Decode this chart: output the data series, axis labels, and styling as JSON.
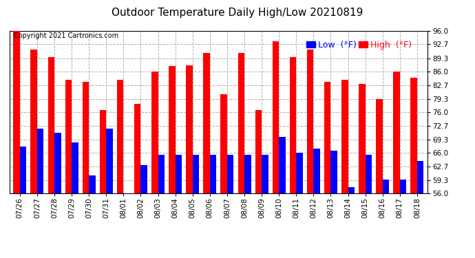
{
  "title": "Outdoor Temperature Daily High/Low 20210819",
  "copyright": "Copyright 2021 Cartronics.com",
  "dates": [
    "07/26",
    "07/27",
    "07/28",
    "07/29",
    "07/30",
    "07/31",
    "08/01",
    "08/02",
    "08/03",
    "08/04",
    "08/05",
    "08/06",
    "08/07",
    "08/08",
    "08/09",
    "08/10",
    "08/11",
    "08/12",
    "08/13",
    "08/14",
    "08/15",
    "08/16",
    "08/17",
    "08/18"
  ],
  "highs": [
    96.0,
    91.5,
    89.5,
    84.0,
    83.5,
    76.5,
    84.0,
    78.0,
    86.0,
    87.3,
    87.5,
    90.5,
    80.5,
    90.5,
    76.5,
    93.5,
    89.5,
    91.5,
    83.5,
    84.0,
    83.0,
    79.3,
    86.0,
    84.5
  ],
  "lows": [
    67.5,
    72.0,
    71.0,
    68.5,
    60.5,
    72.0,
    56.0,
    63.0,
    65.5,
    65.5,
    65.5,
    65.5,
    65.5,
    65.5,
    65.5,
    70.0,
    66.0,
    67.0,
    66.5,
    57.5,
    65.5,
    59.5,
    59.5,
    64.0
  ],
  "ymin": 56.0,
  "ymax": 96.0,
  "yticks": [
    56.0,
    59.3,
    62.7,
    66.0,
    69.3,
    72.7,
    76.0,
    79.3,
    82.7,
    86.0,
    89.3,
    92.7,
    96.0
  ],
  "high_color": "#ff0000",
  "low_color": "#0000ff",
  "bg_color": "#ffffff",
  "grid_color": "#b0b0b0",
  "title_fontsize": 11,
  "copyright_fontsize": 7,
  "legend_fontsize": 9,
  "tick_fontsize": 7.5,
  "bar_width": 0.38
}
